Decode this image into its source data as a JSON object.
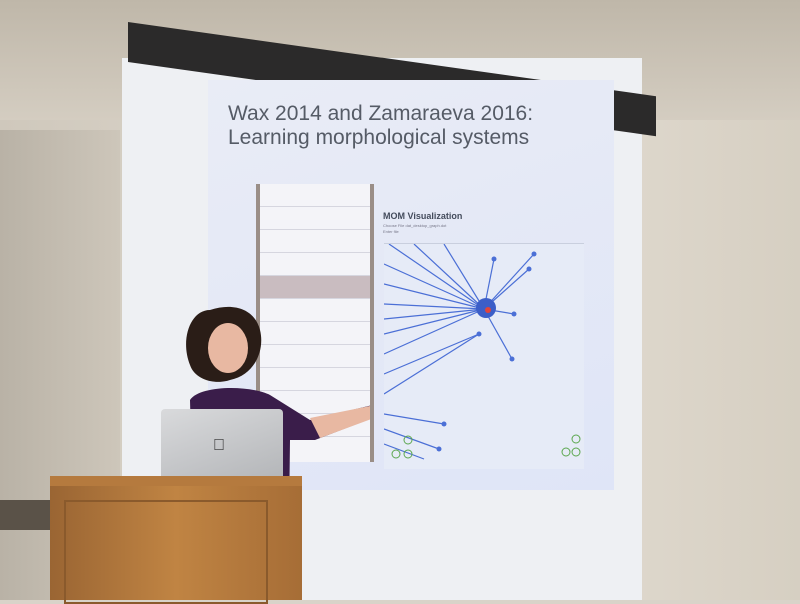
{
  "slide": {
    "title_line1": "Wax 2014 and Zamaraeva 2016:",
    "title_line2": "Learning morphological systems",
    "visualization_title": "MOM Visualization",
    "visualization_sub1": "Choose File",
    "visualization_sub2": "Enter file",
    "file_name": "dat_desktop_graph.dot",
    "left_panel_rows": [
      "",
      "",
      "",
      "",
      "",
      "",
      "",
      "",
      "",
      "",
      ""
    ],
    "selected_row_index": 4
  },
  "scene": {
    "laptop_logo": "apple-icon",
    "colors": {
      "graph_edges": "#4b6fd6",
      "graph_node_highlight": "#e0443c",
      "podium_wood": "#c08443",
      "screen": "#eef0f3"
    }
  }
}
